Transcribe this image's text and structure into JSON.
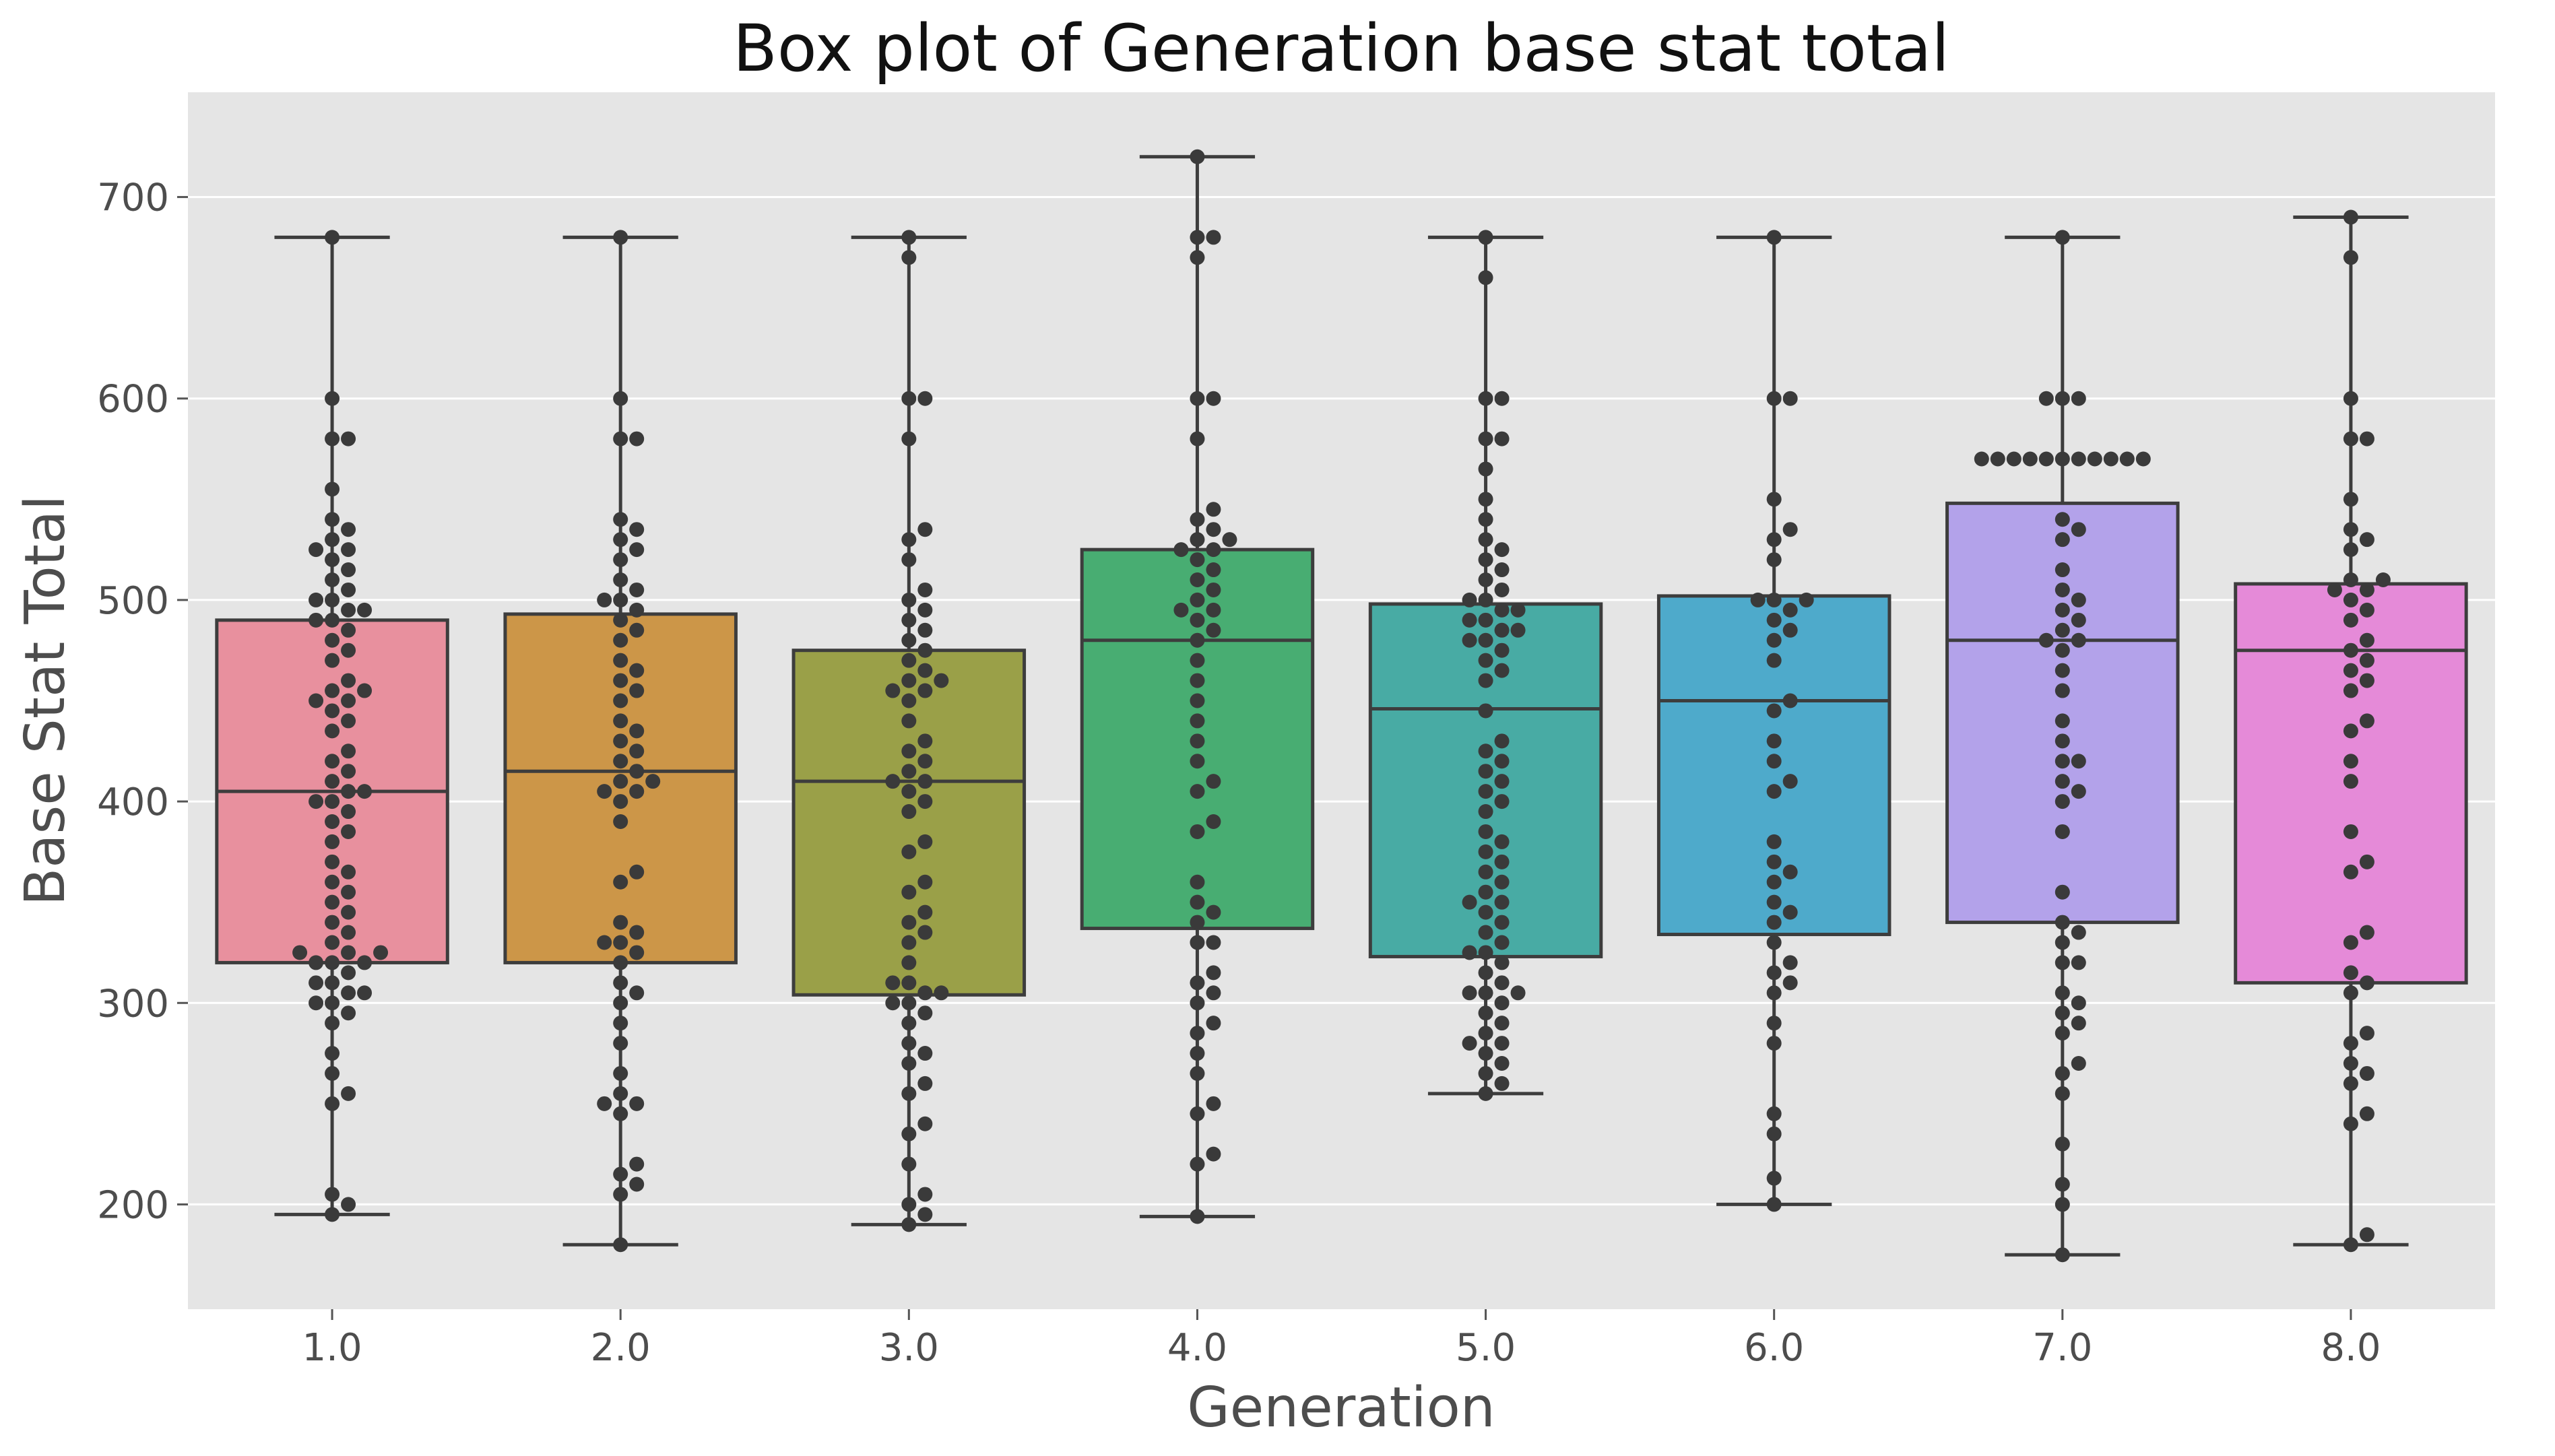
{
  "chart_data": {
    "type": "box",
    "title": "Box plot of Generation base stat total",
    "xlabel": "Generation",
    "ylabel": "Base Stat Total",
    "ylim": [
      148,
      752
    ],
    "yticks": [
      200,
      300,
      400,
      500,
      600,
      700
    ],
    "grid": true,
    "categories": [
      "1.0",
      "2.0",
      "3.0",
      "4.0",
      "5.0",
      "6.0",
      "7.0",
      "8.0"
    ],
    "colors": [
      "#e8909e",
      "#cc9648",
      "#9aa048",
      "#48ad72",
      "#48aba4",
      "#4eaacb",
      "#b3a2ea",
      "#e58ad8"
    ],
    "boxes": [
      {
        "min": 195,
        "q1": 320,
        "median": 405,
        "q3": 490,
        "max": 680
      },
      {
        "min": 180,
        "q1": 320,
        "median": 415,
        "q3": 493,
        "max": 680
      },
      {
        "min": 190,
        "q1": 304,
        "median": 410,
        "q3": 475,
        "max": 680
      },
      {
        "min": 194,
        "q1": 337,
        "median": 480,
        "q3": 525,
        "max": 720
      },
      {
        "min": 255,
        "q1": 323,
        "median": 446,
        "q3": 498,
        "max": 680
      },
      {
        "min": 200,
        "q1": 334,
        "median": 450,
        "q3": 502,
        "max": 680
      },
      {
        "min": 175,
        "q1": 340,
        "median": 480,
        "q3": 548,
        "max": 680
      },
      {
        "min": 180,
        "q1": 310,
        "median": 475,
        "q3": 508,
        "max": 690
      }
    ],
    "points": [
      [
        195,
        200,
        205,
        250,
        255,
        265,
        275,
        290,
        295,
        300,
        300,
        305,
        305,
        310,
        310,
        315,
        320,
        320,
        320,
        325,
        325,
        325,
        330,
        335,
        340,
        345,
        350,
        355,
        360,
        365,
        370,
        380,
        385,
        390,
        395,
        400,
        400,
        405,
        405,
        410,
        415,
        420,
        425,
        435,
        440,
        445,
        450,
        450,
        455,
        455,
        460,
        470,
        475,
        480,
        485,
        490,
        490,
        495,
        495,
        500,
        500,
        505,
        510,
        515,
        520,
        525,
        525,
        530,
        535,
        540,
        555,
        580,
        580,
        600,
        680
      ],
      [
        180,
        205,
        210,
        215,
        220,
        245,
        250,
        250,
        255,
        265,
        280,
        290,
        300,
        305,
        310,
        320,
        325,
        330,
        330,
        335,
        340,
        360,
        365,
        390,
        400,
        405,
        405,
        410,
        410,
        415,
        420,
        425,
        430,
        435,
        440,
        450,
        455,
        460,
        465,
        470,
        480,
        485,
        490,
        495,
        500,
        500,
        505,
        510,
        520,
        525,
        530,
        535,
        540,
        580,
        580,
        600,
        680
      ],
      [
        190,
        195,
        200,
        205,
        220,
        235,
        240,
        255,
        260,
        270,
        275,
        280,
        290,
        295,
        300,
        300,
        305,
        305,
        310,
        310,
        320,
        330,
        335,
        340,
        345,
        355,
        360,
        375,
        380,
        395,
        400,
        405,
        410,
        410,
        415,
        420,
        425,
        430,
        440,
        450,
        455,
        455,
        460,
        460,
        465,
        470,
        475,
        480,
        485,
        490,
        495,
        500,
        505,
        520,
        530,
        535,
        580,
        600,
        600,
        670,
        680
      ],
      [
        194,
        220,
        225,
        245,
        250,
        265,
        275,
        285,
        290,
        300,
        305,
        310,
        315,
        330,
        330,
        340,
        345,
        350,
        360,
        385,
        390,
        405,
        410,
        420,
        430,
        440,
        450,
        460,
        470,
        480,
        485,
        490,
        495,
        495,
        500,
        505,
        510,
        515,
        520,
        525,
        525,
        530,
        530,
        535,
        540,
        545,
        580,
        600,
        600,
        670,
        680,
        680,
        720
      ],
      [
        255,
        260,
        265,
        270,
        275,
        280,
        280,
        285,
        290,
        295,
        300,
        305,
        305,
        305,
        310,
        315,
        320,
        325,
        325,
        330,
        335,
        340,
        345,
        350,
        350,
        355,
        360,
        365,
        370,
        375,
        380,
        385,
        395,
        400,
        405,
        410,
        415,
        420,
        425,
        430,
        445,
        460,
        465,
        470,
        475,
        480,
        480,
        485,
        485,
        490,
        490,
        495,
        495,
        500,
        500,
        505,
        510,
        515,
        520,
        525,
        530,
        540,
        550,
        565,
        580,
        580,
        600,
        600,
        660,
        680
      ],
      [
        200,
        213,
        235,
        245,
        280,
        290,
        305,
        310,
        315,
        320,
        330,
        340,
        345,
        350,
        360,
        365,
        370,
        380,
        405,
        410,
        420,
        430,
        445,
        450,
        470,
        480,
        485,
        490,
        495,
        500,
        500,
        500,
        520,
        530,
        535,
        550,
        600,
        600,
        680
      ],
      [
        175,
        200,
        210,
        230,
        255,
        265,
        270,
        285,
        290,
        295,
        300,
        305,
        320,
        320,
        330,
        335,
        340,
        355,
        385,
        400,
        405,
        410,
        420,
        420,
        430,
        440,
        455,
        465,
        475,
        480,
        480,
        485,
        490,
        495,
        500,
        505,
        515,
        530,
        535,
        540,
        570,
        570,
        570,
        570,
        570,
        570,
        570,
        570,
        570,
        570,
        570,
        600,
        600,
        600,
        680
      ],
      [
        180,
        185,
        240,
        245,
        260,
        265,
        270,
        280,
        285,
        305,
        310,
        315,
        330,
        335,
        365,
        370,
        385,
        410,
        420,
        435,
        440,
        455,
        460,
        465,
        470,
        475,
        480,
        490,
        495,
        500,
        505,
        505,
        510,
        510,
        525,
        530,
        535,
        550,
        580,
        580,
        600,
        670,
        690
      ]
    ]
  }
}
